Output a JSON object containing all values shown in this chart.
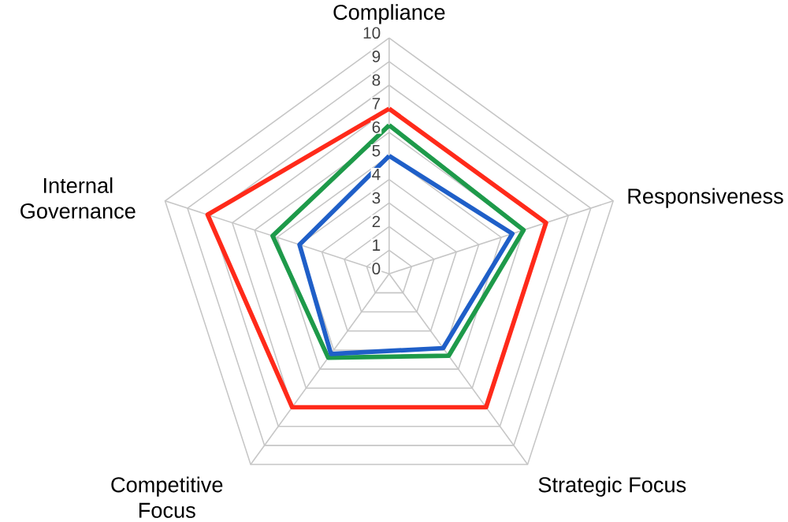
{
  "chart_data": {
    "type": "radar",
    "categories": [
      "Compliance",
      "Responsiveness",
      "Strategic Focus",
      "Competitive Focus",
      "Internal Governance"
    ],
    "series": [
      {
        "color": "#ff2a1a",
        "values": [
          7,
          7,
          7,
          7,
          8.1
        ]
      },
      {
        "color": "#1e9a4a",
        "values": [
          6.3,
          6,
          4.3,
          4.4,
          5.2
        ]
      },
      {
        "color": "#1f5fc8",
        "values": [
          5,
          5.5,
          3.9,
          4.2,
          4
        ]
      }
    ],
    "ylim": [
      0,
      10
    ],
    "yticks": [
      0,
      1,
      2,
      3,
      4,
      5,
      6,
      7,
      8,
      9,
      10
    ],
    "grid": true
  }
}
